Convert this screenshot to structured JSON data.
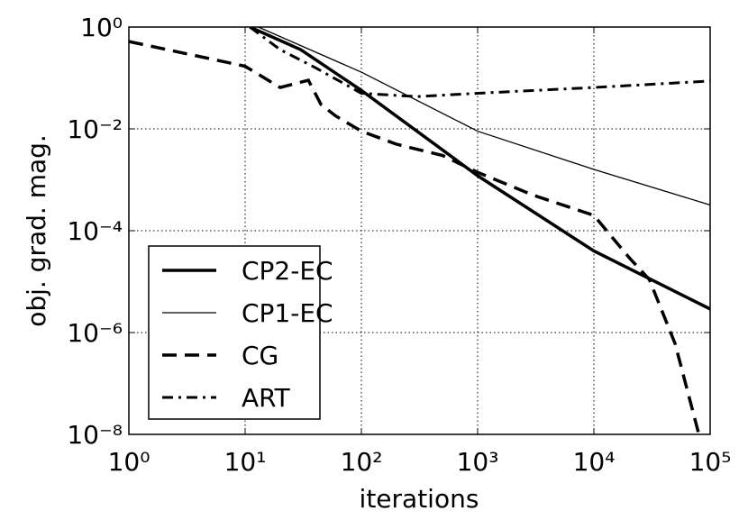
{
  "chart_data": {
    "type": "line",
    "xlabel": "iterations",
    "ylabel": "obj. grad. mag.",
    "xscale": "log",
    "yscale": "log",
    "grid": true,
    "legend": "lower left",
    "xlim": [
      1,
      100000
    ],
    "ylim": [
      1e-08,
      1
    ],
    "xticks": [
      {
        "value": 1,
        "label": "10⁰"
      },
      {
        "value": 10,
        "label": "10¹"
      },
      {
        "value": 100,
        "label": "10²"
      },
      {
        "value": 1000,
        "label": "10³"
      },
      {
        "value": 10000,
        "label": "10⁴"
      },
      {
        "value": 100000,
        "label": "10⁵"
      }
    ],
    "yticks": [
      {
        "value": 1e-08,
        "label": "10⁻⁸"
      },
      {
        "value": 1e-06,
        "label": "10⁻⁶"
      },
      {
        "value": 0.0001,
        "label": "10⁻⁴"
      },
      {
        "value": 0.01,
        "label": "10⁻²"
      },
      {
        "value": 1,
        "label": "10⁰"
      }
    ],
    "series": [
      {
        "name": "CP2-EC",
        "color": "#000000",
        "line_width": 3.5,
        "line_style": "solid",
        "x": [
          11,
          30,
          100,
          1000,
          10000,
          100000
        ],
        "values": [
          1,
          0.36,
          0.057,
          0.0012,
          4e-05,
          2.9e-06
        ]
      },
      {
        "name": "CP1-EC",
        "color": "#000000",
        "line_width": 1.3,
        "line_style": "solid",
        "x": [
          13,
          100,
          1000,
          10000,
          100000
        ],
        "values": [
          1,
          0.13,
          0.009,
          0.0016,
          0.00032
        ]
      },
      {
        "name": "CG",
        "color": "#000000",
        "line_width": 3.5,
        "line_style": "dashed",
        "x": [
          1,
          10,
          20,
          35,
          45,
          60,
          100,
          200,
          500,
          1000,
          3000,
          10000,
          20000,
          30000,
          50000,
          80000
        ],
        "values": [
          0.52,
          0.17,
          0.065,
          0.09,
          0.03,
          0.018,
          0.009,
          0.005,
          0.003,
          0.0014,
          0.0005,
          0.0002,
          3e-05,
          1.1e-05,
          6e-07,
          1e-08
        ]
      },
      {
        "name": "ART",
        "color": "#000000",
        "line_width": 3,
        "line_style": "dashdot",
        "x": [
          11,
          20,
          40,
          100,
          300,
          1000,
          10000,
          100000
        ],
        "values": [
          1,
          0.36,
          0.16,
          0.05,
          0.043,
          0.05,
          0.065,
          0.087
        ]
      }
    ]
  }
}
